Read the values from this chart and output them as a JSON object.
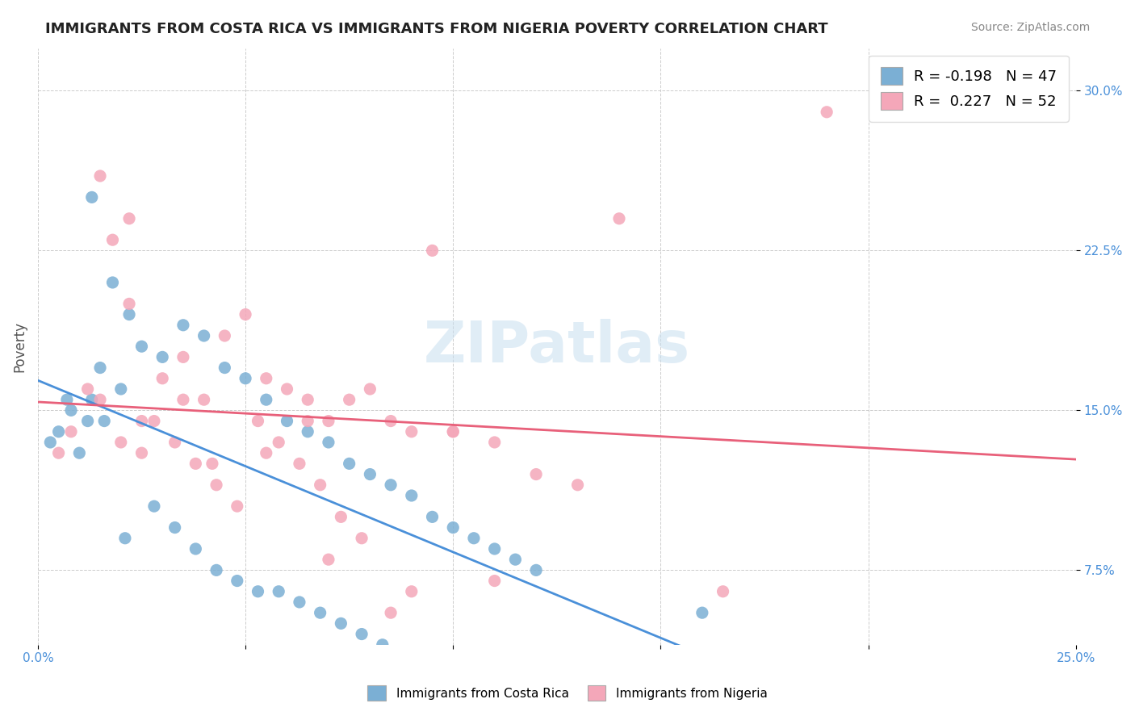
{
  "title": "IMMIGRANTS FROM COSTA RICA VS IMMIGRANTS FROM NIGERIA POVERTY CORRELATION CHART",
  "source": "Source: ZipAtlas.com",
  "xlabel": "",
  "ylabel": "Poverty",
  "xlim": [
    0.0,
    0.25
  ],
  "ylim": [
    0.04,
    0.32
  ],
  "yticks": [
    0.075,
    0.15,
    0.225,
    0.3
  ],
  "ytick_labels": [
    "7.5%",
    "15.0%",
    "22.5%",
    "30.0%"
  ],
  "xticks": [
    0.0,
    0.05,
    0.1,
    0.15,
    0.2,
    0.25
  ],
  "xtick_labels": [
    "0.0%",
    "",
    "",
    "",
    "",
    "25.0%"
  ],
  "legend_r1": "R = -0.198",
  "legend_n1": "N = 47",
  "legend_r2": "R =  0.227",
  "legend_n2": "N = 52",
  "watermark": "ZIPatlas",
  "blue_color": "#7bafd4",
  "pink_color": "#f4a7b9",
  "blue_line_color": "#4a90d9",
  "pink_line_color": "#e8607a",
  "background_color": "#ffffff",
  "blue_scatter_x": [
    0.01,
    0.005,
    0.008,
    0.012,
    0.015,
    0.02,
    0.025,
    0.03,
    0.035,
    0.04,
    0.045,
    0.05,
    0.055,
    0.06,
    0.065,
    0.07,
    0.075,
    0.08,
    0.085,
    0.09,
    0.095,
    0.1,
    0.105,
    0.11,
    0.115,
    0.12,
    0.013,
    0.018,
    0.022,
    0.028,
    0.033,
    0.038,
    0.043,
    0.048,
    0.053,
    0.058,
    0.063,
    0.068,
    0.073,
    0.078,
    0.083,
    0.16,
    0.013,
    0.016,
    0.021,
    0.003,
    0.007
  ],
  "blue_scatter_y": [
    0.13,
    0.14,
    0.15,
    0.145,
    0.17,
    0.16,
    0.18,
    0.175,
    0.19,
    0.185,
    0.17,
    0.165,
    0.155,
    0.145,
    0.14,
    0.135,
    0.125,
    0.12,
    0.115,
    0.11,
    0.1,
    0.095,
    0.09,
    0.085,
    0.08,
    0.075,
    0.25,
    0.21,
    0.195,
    0.105,
    0.095,
    0.085,
    0.075,
    0.07,
    0.065,
    0.065,
    0.06,
    0.055,
    0.05,
    0.045,
    0.04,
    0.055,
    0.155,
    0.145,
    0.09,
    0.135,
    0.155
  ],
  "pink_scatter_x": [
    0.005,
    0.008,
    0.012,
    0.015,
    0.02,
    0.025,
    0.03,
    0.035,
    0.04,
    0.045,
    0.05,
    0.055,
    0.06,
    0.065,
    0.07,
    0.075,
    0.08,
    0.085,
    0.09,
    0.095,
    0.1,
    0.11,
    0.12,
    0.13,
    0.14,
    0.015,
    0.018,
    0.022,
    0.028,
    0.033,
    0.038,
    0.043,
    0.048,
    0.053,
    0.058,
    0.063,
    0.068,
    0.073,
    0.078,
    0.1,
    0.07,
    0.09,
    0.055,
    0.165,
    0.022,
    0.035,
    0.042,
    0.065,
    0.11,
    0.025,
    0.19,
    0.085
  ],
  "pink_scatter_y": [
    0.13,
    0.14,
    0.16,
    0.155,
    0.135,
    0.145,
    0.165,
    0.175,
    0.155,
    0.185,
    0.195,
    0.165,
    0.16,
    0.155,
    0.145,
    0.155,
    0.16,
    0.145,
    0.14,
    0.225,
    0.14,
    0.135,
    0.12,
    0.115,
    0.24,
    0.26,
    0.23,
    0.2,
    0.145,
    0.135,
    0.125,
    0.115,
    0.105,
    0.145,
    0.135,
    0.125,
    0.115,
    0.1,
    0.09,
    0.14,
    0.08,
    0.065,
    0.13,
    0.065,
    0.24,
    0.155,
    0.125,
    0.145,
    0.07,
    0.13,
    0.29,
    0.055
  ]
}
